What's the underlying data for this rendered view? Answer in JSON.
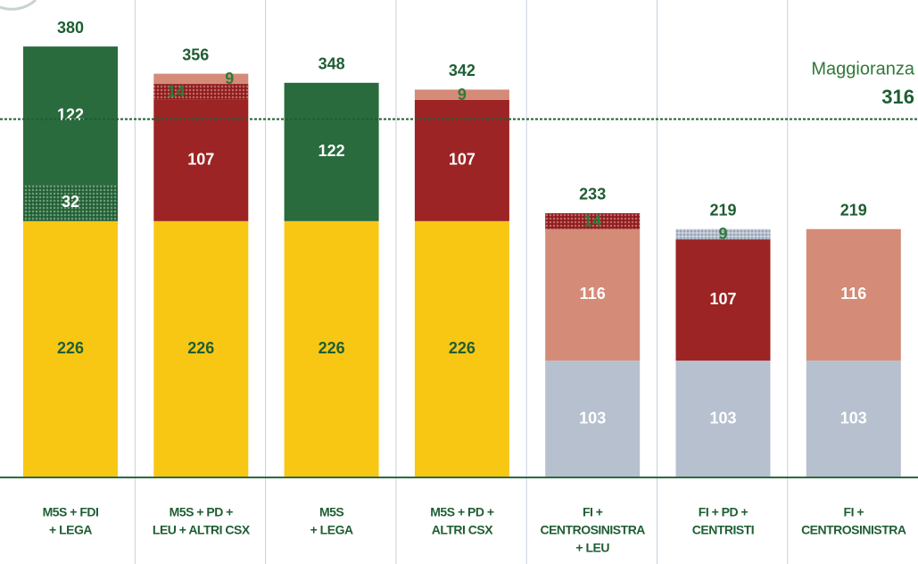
{
  "chart_data": {
    "type": "stacked_bar",
    "ylim": [
      0,
      410
    ],
    "majority": {
      "label": "Maggioranza",
      "value": 316
    },
    "bars": [
      {
        "category": [
          "M5S + FDI",
          "+ LEGA"
        ],
        "total": 380,
        "segments": [
          {
            "value": 226,
            "color": "#f8c714",
            "label_color": "#1f5e33"
          },
          {
            "value": 32,
            "color": "#2b6b3e",
            "pattern": "dots",
            "label_color": "#ffffff"
          },
          {
            "value": 122,
            "color": "#296b3d",
            "label_color": "#ffffff"
          }
        ]
      },
      {
        "category": [
          "M5S + PD +",
          "LEU + ALTRI CSX"
        ],
        "total": 356,
        "segments": [
          {
            "value": 226,
            "color": "#f8c714",
            "label_color": "#1f5e33"
          },
          {
            "value": 107,
            "color": "#9c2424",
            "label_color": "#ffffff"
          },
          {
            "value": 14,
            "color": "#9c2424",
            "pattern": "dots",
            "label_color": "#2f7a3a"
          },
          {
            "value": 9,
            "color": "#d48b77",
            "label_color": "#2f7a3a"
          }
        ]
      },
      {
        "category": [
          "M5S",
          "+ LEGA"
        ],
        "total": 348,
        "segments": [
          {
            "value": 226,
            "color": "#f8c714",
            "label_color": "#1f5e33"
          },
          {
            "value": 122,
            "color": "#296b3d",
            "label_color": "#ffffff"
          }
        ]
      },
      {
        "category": [
          "M5S + PD +",
          "ALTRI CSX"
        ],
        "total": 342,
        "segments": [
          {
            "value": 226,
            "color": "#f8c714",
            "label_color": "#1f5e33"
          },
          {
            "value": 107,
            "color": "#9c2424",
            "label_color": "#ffffff"
          },
          {
            "value": 9,
            "color": "#d48b77",
            "label_color": "#2f7a3a"
          }
        ]
      },
      {
        "category": [
          "FI +",
          "CENTROSINISTRA",
          "+ LEU"
        ],
        "total": 233,
        "segments": [
          {
            "value": 103,
            "color": "#b6c0cf",
            "label_color": "#ffffff"
          },
          {
            "value": 116,
            "color": "#d48b77",
            "label_color": "#ffffff"
          },
          {
            "value": 14,
            "color": "#9c2424",
            "pattern": "dots",
            "label_color": "#2f7a3a"
          }
        ]
      },
      {
        "category": [
          "FI + PD +",
          "CENTRISTI"
        ],
        "total": 219,
        "segments": [
          {
            "value": 103,
            "color": "#b6c0cf",
            "label_color": "#ffffff"
          },
          {
            "value": 107,
            "color": "#9c2424",
            "label_color": "#ffffff"
          },
          {
            "value": 9,
            "color": "#b6c0cf",
            "pattern": "dots",
            "label_color": "#2f7a3a"
          }
        ]
      },
      {
        "category": [
          "FI +",
          "CENTROSINISTRA"
        ],
        "total": 219,
        "segments": [
          {
            "value": 103,
            "color": "#b6c0cf",
            "label_color": "#ffffff"
          },
          {
            "value": 116,
            "color": "#d48b77",
            "label_color": "#ffffff"
          }
        ]
      }
    ]
  }
}
